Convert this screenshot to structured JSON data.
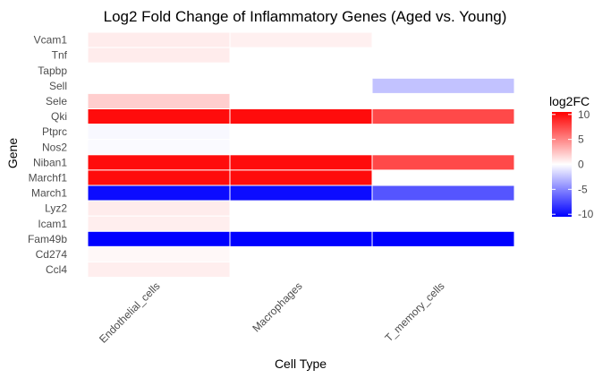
{
  "chart_data": {
    "type": "heatmap",
    "title": "Log2 Fold Change of Inflammatory Genes (Aged vs. Young)",
    "xlabel": "Cell Type",
    "ylabel": "Gene",
    "x_categories": [
      "Endothelial_cells",
      "Macrophages",
      "T_memory_cells"
    ],
    "y_categories": [
      "Vcam1",
      "Tnf",
      "Tapbp",
      "Sell",
      "Sele",
      "Qki",
      "Ptprc",
      "Nos2",
      "Niban1",
      "Marchf1",
      "March1",
      "Lyz2",
      "Icam1",
      "Fam49b",
      "Cd274",
      "Ccl4"
    ],
    "values": [
      [
        0.8,
        0.6,
        null
      ],
      [
        0.8,
        null,
        null
      ],
      [
        null,
        null,
        null
      ],
      [
        null,
        null,
        -2.5
      ],
      [
        2.0,
        null,
        null
      ],
      [
        10.0,
        10.0,
        7.5
      ],
      [
        -0.3,
        null,
        null
      ],
      [
        -0.2,
        null,
        null
      ],
      [
        10.0,
        10.0,
        7.5
      ],
      [
        10.0,
        10.0,
        null
      ],
      [
        -10.0,
        -10.0,
        -7.0
      ],
      [
        0.8,
        null,
        null
      ],
      [
        0.7,
        null,
        null
      ],
      [
        -10.5,
        -10.5,
        -10.5
      ],
      [
        0.3,
        null,
        null
      ],
      [
        0.7,
        null,
        null
      ]
    ],
    "legend": {
      "title": "log2FC",
      "ticks": [
        10,
        5,
        0,
        -5,
        -10
      ],
      "range": [
        -10.5,
        10.5
      ],
      "position": "right",
      "colors": {
        "low": "#0000ff",
        "mid": "#ffffff",
        "high": "#ff0000"
      }
    },
    "grid": false
  }
}
